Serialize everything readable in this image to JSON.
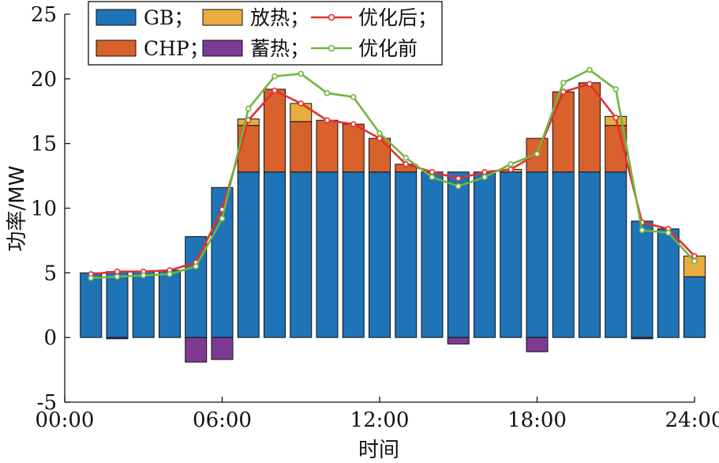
{
  "chart_data": {
    "type": "bar",
    "stacked": true,
    "xlabel": "时间",
    "ylabel": "功率/MW",
    "xticks": [
      "00:00",
      "06:00",
      "12:00",
      "18:00",
      "24:00"
    ],
    "xlim_hours": [
      0,
      24
    ],
    "ylim": [
      -5,
      25
    ],
    "yticks": [
      -5,
      0,
      5,
      10,
      15,
      20,
      25
    ],
    "hours": [
      1,
      2,
      3,
      4,
      5,
      6,
      7,
      8,
      9,
      10,
      11,
      12,
      13,
      14,
      15,
      16,
      17,
      18,
      19,
      20,
      21,
      22,
      23,
      24
    ],
    "grid": false,
    "legend_position": "top-left",
    "series": [
      {
        "name": "GB；",
        "kind": "bar",
        "color": "#1f73b7",
        "values": [
          5.0,
          5.1,
          5.1,
          5.2,
          7.8,
          11.6,
          12.8,
          12.8,
          12.8,
          12.8,
          12.8,
          12.8,
          12.8,
          12.8,
          12.8,
          12.8,
          12.8,
          12.8,
          12.8,
          12.8,
          12.8,
          9.0,
          8.4,
          4.7
        ]
      },
      {
        "name": "CHP；",
        "kind": "bar",
        "color": "#d9612c",
        "values": [
          0,
          0,
          0,
          0,
          0,
          0,
          3.6,
          6.4,
          3.9,
          4.0,
          3.7,
          2.6,
          0.6,
          0,
          0,
          0,
          0,
          2.6,
          6.2,
          6.9,
          3.6,
          0,
          0,
          0
        ]
      },
      {
        "name": "放热；",
        "kind": "bar",
        "color": "#e8ad3e",
        "values": [
          0,
          0,
          0,
          0,
          0,
          0,
          0.5,
          0,
          1.4,
          0,
          0,
          0,
          0,
          0,
          0,
          0,
          0.2,
          0,
          0,
          0,
          0.7,
          0,
          0,
          1.6
        ]
      },
      {
        "name": "蓄热；",
        "kind": "bar",
        "color": "#7d3a93",
        "values": [
          0,
          -0.1,
          0,
          0,
          -1.9,
          -1.7,
          0,
          0,
          0,
          0,
          0,
          0,
          0,
          0,
          -0.5,
          0,
          0,
          -1.1,
          0,
          0,
          0,
          -0.1,
          0,
          0
        ]
      },
      {
        "name": "优化后；",
        "kind": "line",
        "color": "#e03131",
        "values": [
          4.9,
          5.1,
          5.1,
          5.2,
          5.8,
          9.9,
          16.8,
          19.1,
          18.1,
          16.8,
          16.5,
          15.4,
          13.4,
          12.8,
          12.3,
          12.8,
          13.0,
          14.2,
          19.0,
          19.6,
          17.0,
          8.9,
          8.4,
          6.3
        ]
      },
      {
        "name": "优化前",
        "kind": "line",
        "color": "#72b43f",
        "values": [
          4.6,
          4.7,
          4.8,
          4.9,
          5.5,
          9.2,
          17.7,
          20.2,
          20.4,
          18.9,
          18.6,
          15.8,
          13.9,
          12.4,
          11.7,
          12.4,
          13.4,
          14.2,
          19.7,
          20.7,
          19.2,
          8.3,
          8.1,
          5.9
        ]
      }
    ]
  }
}
